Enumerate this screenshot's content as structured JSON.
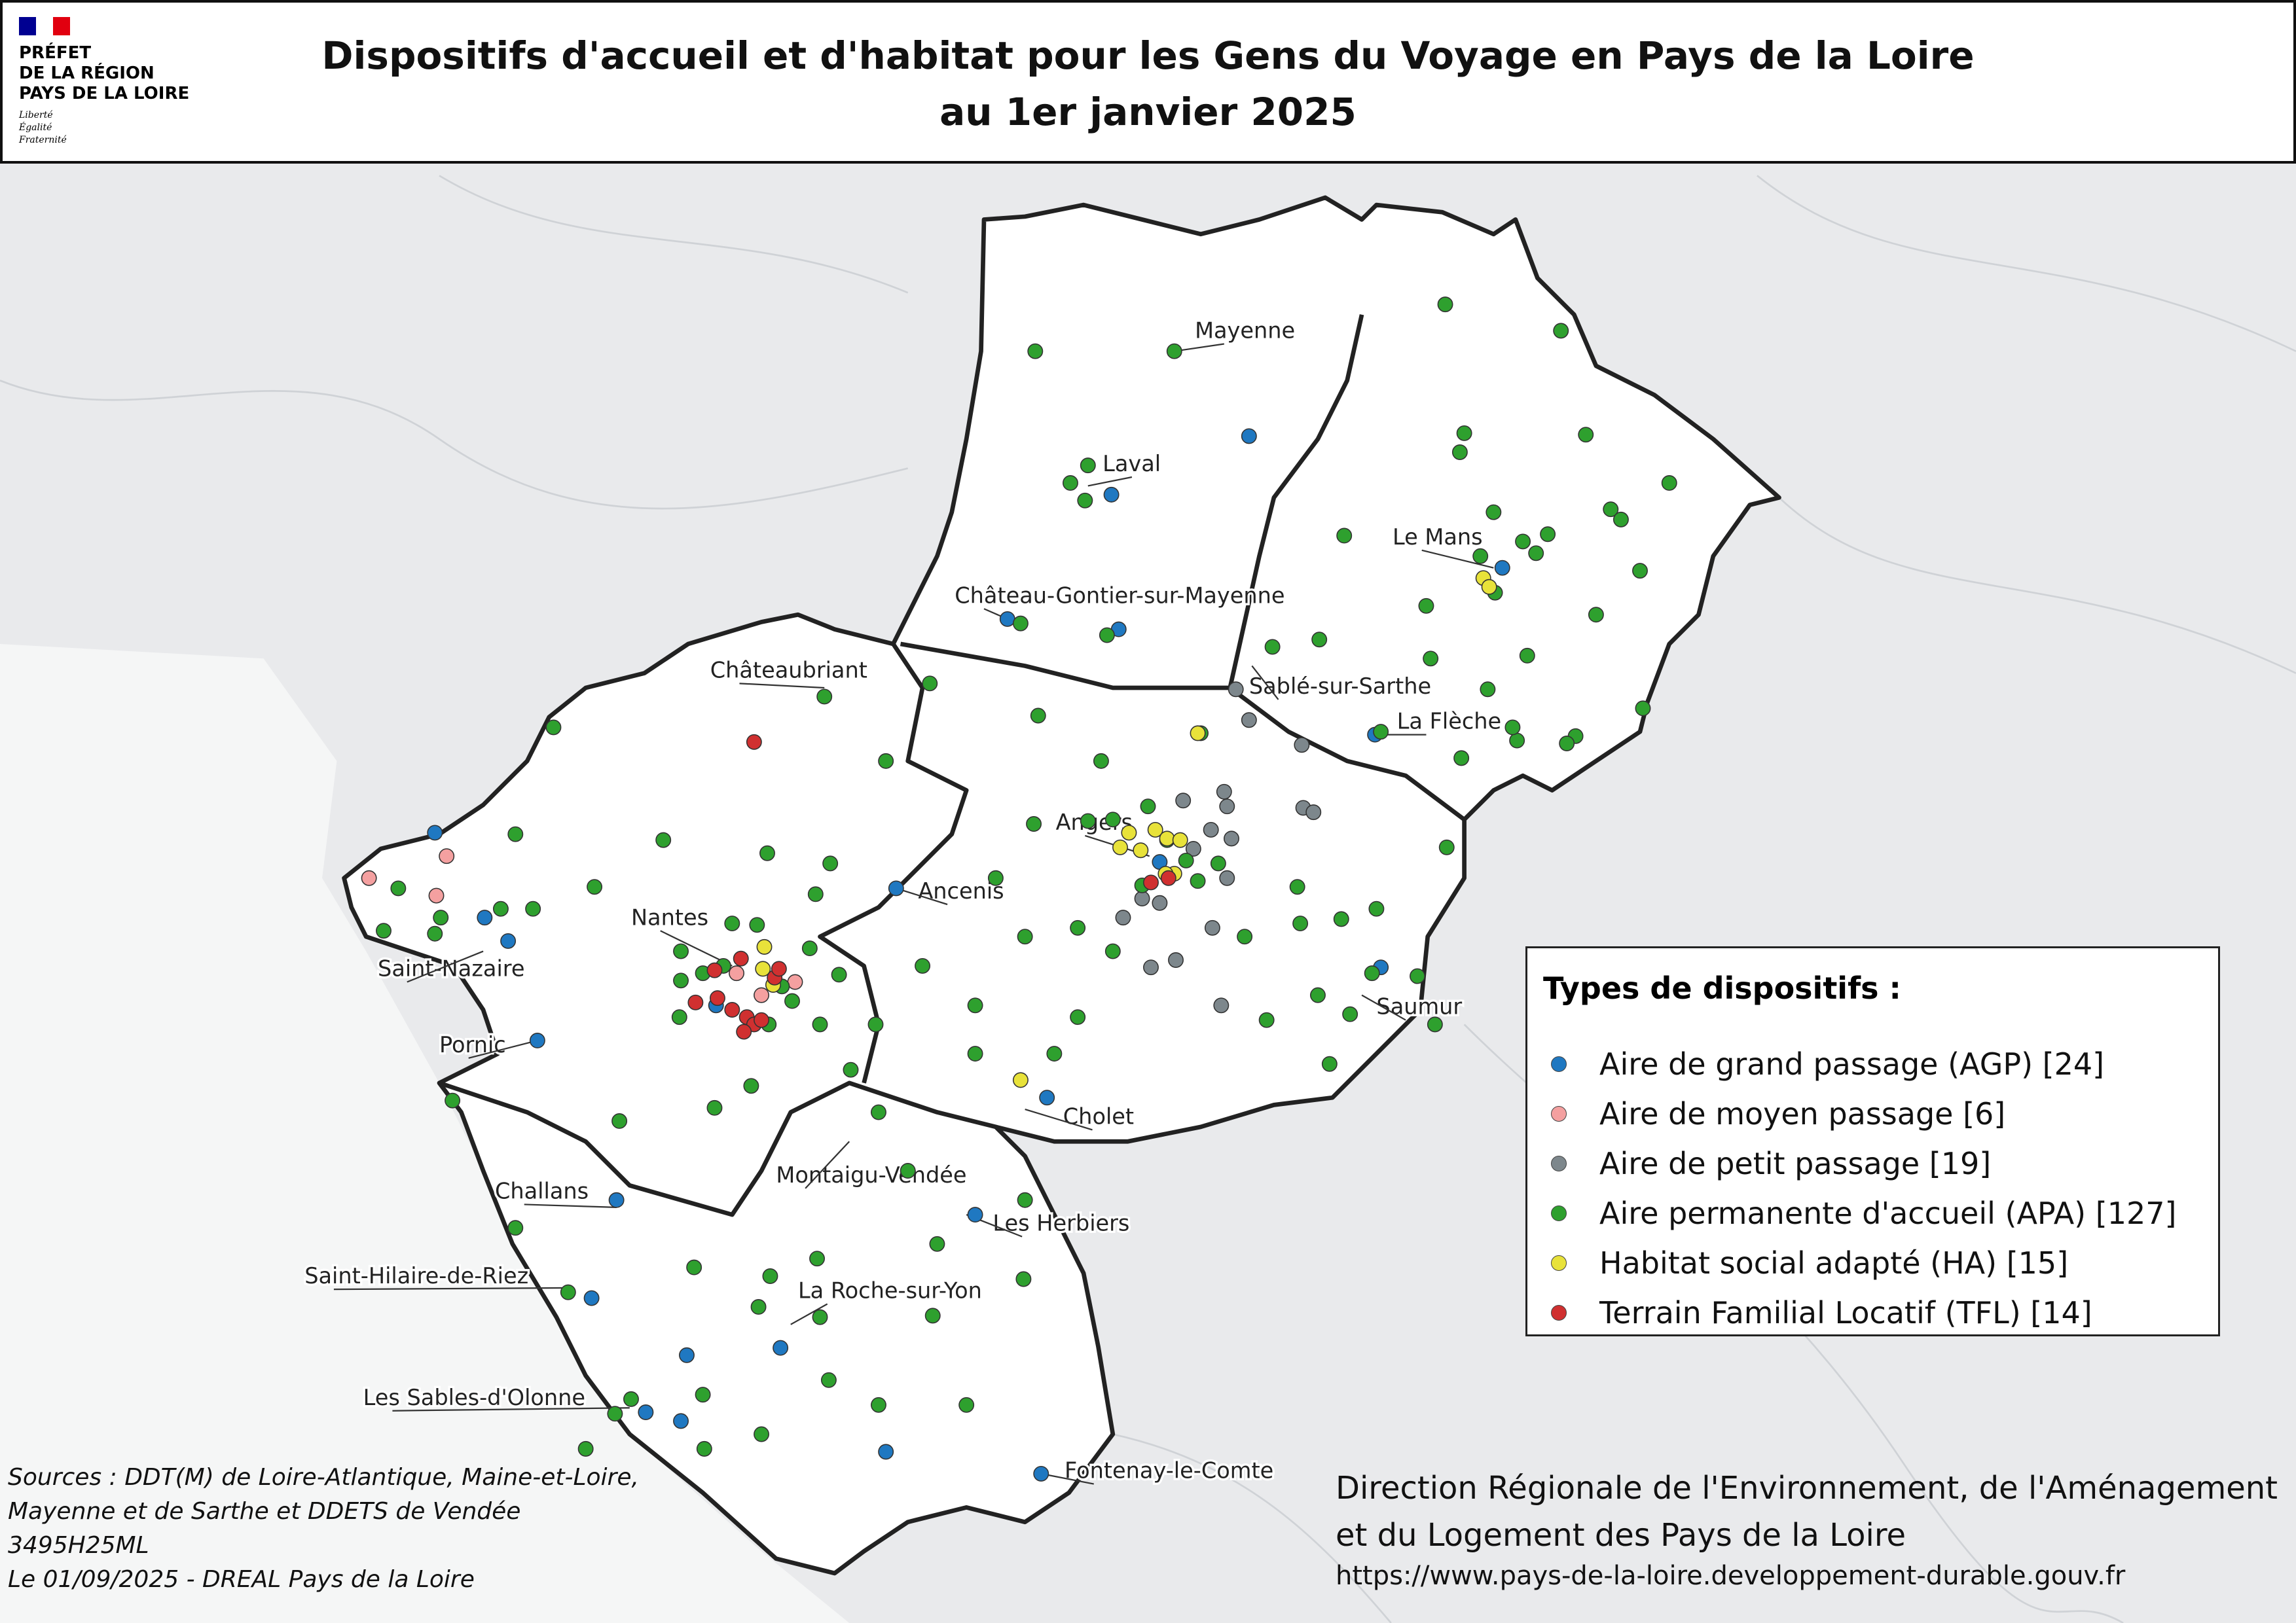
{
  "logo": {
    "brand_lines": [
      "PRÉFET",
      "DE LA RÉGION",
      "PAYS DE LA LOIRE"
    ],
    "motto": [
      "Liberté",
      "Égalité",
      "Fraternité"
    ],
    "flag_colors": [
      "#000091",
      "#ffffff",
      "#e1000f"
    ]
  },
  "title": {
    "line1": "Dispositifs d'accueil et d'habitat pour les Gens du Voyage en Pays de la Loire",
    "line2": "au 1er janvier 2025"
  },
  "places": [
    "Mayenne",
    "Laval",
    "Le Mans",
    "Château-Gontier-sur-Mayenne",
    "Sablé-sur-Sarthe",
    "La Flèche",
    "Châteaubriant",
    "Angers",
    "Ancenis",
    "Nantes",
    "Saint-Nazaire",
    "Pornic",
    "Saumur",
    "Cholet",
    "Montaigu-Vendée",
    "Les Herbiers",
    "Challans",
    "Saint-Hilaire-de-Riez",
    "La Roche-sur-Yon",
    "Les Sables-d'Olonne",
    "Fontenay-le-Comte"
  ],
  "legend": {
    "title": "Types de dispositifs :",
    "items": [
      {
        "label": "Aire de grand passage (AGP) [24]",
        "color": "#1f78c1",
        "count": 24
      },
      {
        "label": "Aire de moyen passage [6]",
        "color": "#f4a0a0",
        "count": 6
      },
      {
        "label": "Aire de petit passage [19]",
        "color": "#7d878c",
        "count": 19
      },
      {
        "label": "Aire permanente d'accueil (APA) [127]",
        "color": "#2ea02e",
        "count": 127
      },
      {
        "label": "Habitat social adapté (HA) [15]",
        "color": "#e8e23a",
        "count": 15
      },
      {
        "label": "Terrain Familial Locatif (TFL) [14]",
        "color": "#d03030",
        "count": 14
      }
    ]
  },
  "sources": [
    "Sources : DDT(M) de Loire-Atlantique, Maine-et-Loire,",
    "Mayenne et de Sarthe et DDETS de Vendée",
    "3495H25ML",
    "Le 01/09/2025 - DREAL Pays de la Loire"
  ],
  "credit": {
    "line1": "Direction Régionale de l'Environnement, de l'Aménagement",
    "line2": "et du Logement des Pays de la Loire",
    "url": "https://www.pays-de-la-loire.developpement-durable.gouv.fr"
  }
}
